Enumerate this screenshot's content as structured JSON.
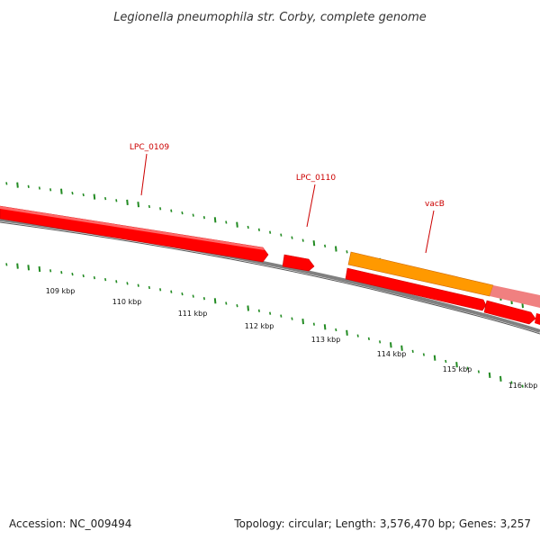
{
  "title": "Legionella pneumophila str. Corby, complete genome",
  "footer": {
    "accession": "Accession: NC_009494",
    "summary": "Topology: circular; Length: 3,576,470 bp; Genes: 3,257"
  },
  "colors": {
    "gene_forward": "#ff0000",
    "gene_reverse": "#ff0000",
    "gene_highlight": "#ff9900",
    "gene_faded": "#f08080",
    "gc_tick": "#228b22",
    "backbone": "#808080",
    "label": "#cc0000"
  },
  "scale_ticks": [
    "109 kbp",
    "110 kbp",
    "111 kbp",
    "112 kbp",
    "113 kbp",
    "114 kbp",
    "115 kbp",
    "116 kbp"
  ],
  "gene_labels": [
    "LPC_0109",
    "LPC_0110",
    "vacB"
  ]
}
